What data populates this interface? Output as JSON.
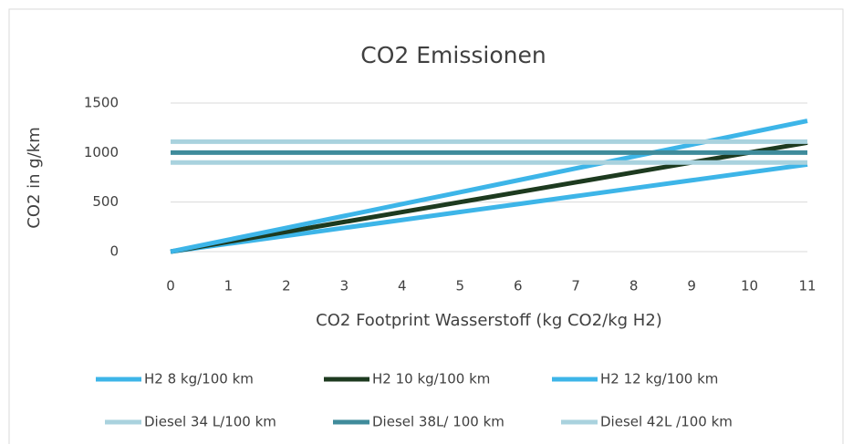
{
  "chart_data": {
    "type": "line",
    "title": "CO2 Emissionen",
    "xlabel": "CO2 Footprint Wasserstoff (kg CO2/kg H2)",
    "ylabel": "CO2 in g/km",
    "x": [
      0,
      1,
      2,
      3,
      4,
      5,
      6,
      7,
      8,
      9,
      10,
      11
    ],
    "series": [
      {
        "name": "H2 8 kg/100 km",
        "color": "#3db5e8",
        "values": [
          0,
          80,
          160,
          240,
          320,
          400,
          480,
          560,
          640,
          720,
          800,
          880
        ]
      },
      {
        "name": "H2 10 kg/100 km",
        "color": "#1d3a1f",
        "values": [
          0,
          100,
          200,
          300,
          400,
          500,
          600,
          700,
          800,
          900,
          1000,
          1100
        ]
      },
      {
        "name": "H2 12 kg/100 km",
        "color": "#3db5e8",
        "values": [
          0,
          120,
          240,
          360,
          480,
          600,
          720,
          840,
          960,
          1080,
          1200,
          1320
        ]
      },
      {
        "name": "Diesel 34 L/100 km",
        "color": "#a9d2de",
        "values": [
          900,
          900,
          900,
          900,
          900,
          900,
          900,
          900,
          900,
          900,
          900,
          900
        ]
      },
      {
        "name": "Diesel 38L/ 100 km",
        "color": "#3f8b9b",
        "values": [
          1000,
          1000,
          1000,
          1000,
          1000,
          1000,
          1000,
          1000,
          1000,
          1000,
          1000,
          1000
        ]
      },
      {
        "name": "Diesel 42L /100 km",
        "color": "#a9d2de",
        "values": [
          1110,
          1110,
          1110,
          1110,
          1110,
          1110,
          1110,
          1110,
          1110,
          1110,
          1110,
          1110
        ]
      }
    ],
    "xlim": [
      0,
      11
    ],
    "xticks": [
      0,
      1,
      2,
      3,
      4,
      5,
      6,
      7,
      8,
      9,
      10,
      11
    ],
    "ylim": [
      0,
      1500
    ],
    "yticks": [
      0,
      500,
      1000,
      1500
    ],
    "grid": true,
    "legend": "bottom"
  }
}
